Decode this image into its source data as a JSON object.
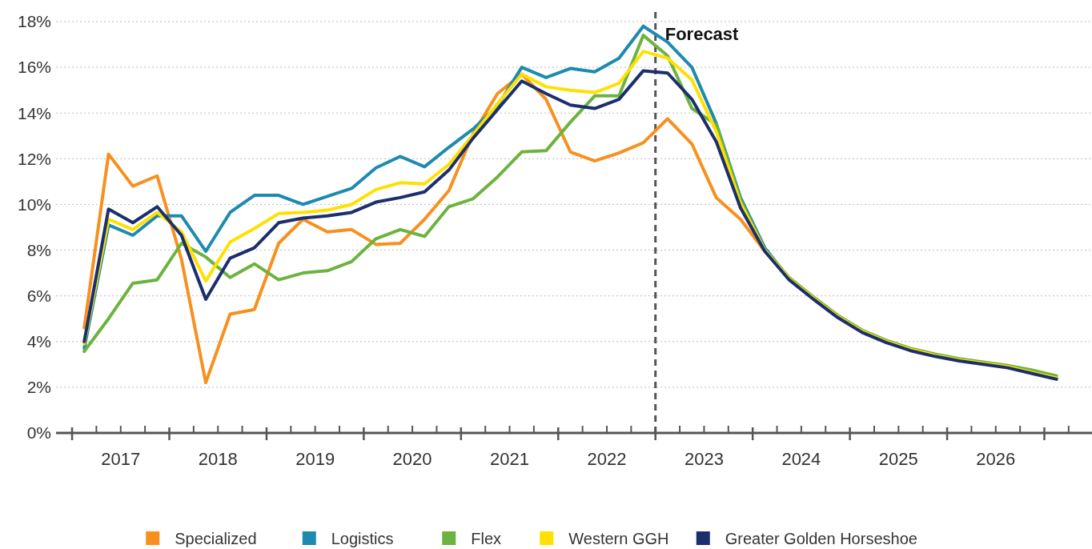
{
  "chart_data": {
    "type": "line",
    "x": [
      2017.125,
      2017.375,
      2017.625,
      2017.875,
      2018.125,
      2018.375,
      2018.625,
      2018.875,
      2019.125,
      2019.375,
      2019.625,
      2019.875,
      2020.125,
      2020.375,
      2020.625,
      2020.875,
      2021.125,
      2021.375,
      2021.625,
      2021.875,
      2022.125,
      2022.375,
      2022.625,
      2022.875,
      2023.125,
      2023.375,
      2023.625,
      2023.875,
      2024.125,
      2024.375,
      2024.625,
      2024.875,
      2025.125,
      2025.375,
      2025.625,
      2025.875,
      2026.125,
      2026.375,
      2026.625,
      2026.875,
      2027.125
    ],
    "series": [
      {
        "name": "Specialized",
        "color": "#f7901e",
        "values": [
          4.6,
          12.2,
          10.8,
          11.25,
          7.6,
          2.2,
          5.2,
          5.4,
          8.3,
          9.35,
          8.8,
          8.9,
          8.25,
          8.3,
          9.35,
          10.6,
          13.1,
          14.85,
          15.7,
          14.6,
          12.3,
          11.9,
          12.25,
          12.7,
          13.75,
          12.65,
          10.3,
          9.35,
          7.95,
          6.75,
          null,
          null,
          null,
          null,
          null,
          null,
          null,
          null,
          null,
          null,
          null
        ]
      },
      {
        "name": "Logistics",
        "color": "#1d8ab0",
        "values": [
          3.7,
          9.1,
          8.65,
          9.5,
          9.5,
          7.95,
          9.65,
          10.4,
          10.4,
          10.0,
          10.35,
          10.7,
          11.6,
          12.1,
          11.65,
          12.5,
          13.3,
          14.3,
          16.0,
          15.55,
          15.95,
          15.8,
          16.4,
          17.8,
          17.1,
          16.0,
          13.55,
          10.3,
          8.1,
          6.75,
          5.9,
          5.1,
          4.45,
          4.0,
          3.65,
          3.4,
          3.2,
          3.05,
          2.9,
          2.65,
          2.4
        ]
      },
      {
        "name": "Flex",
        "color": "#6db33f",
        "values": [
          3.57,
          5.0,
          6.55,
          6.7,
          8.3,
          7.7,
          6.8,
          7.4,
          6.7,
          7.0,
          7.1,
          7.5,
          8.5,
          8.9,
          8.6,
          9.9,
          10.25,
          11.2,
          12.3,
          12.35,
          13.6,
          14.75,
          14.75,
          17.4,
          16.5,
          14.2,
          13.5,
          10.2,
          8.0,
          6.8,
          5.95,
          5.15,
          4.5,
          4.05,
          3.7,
          3.45,
          3.25,
          3.1,
          2.95,
          2.75,
          2.5
        ]
      },
      {
        "name": "Western GGH",
        "color": "#ffe000",
        "values": [
          3.9,
          9.35,
          8.9,
          9.65,
          8.8,
          6.65,
          8.35,
          8.95,
          9.6,
          9.65,
          9.75,
          10.0,
          10.65,
          10.95,
          10.9,
          11.75,
          13.05,
          14.4,
          15.7,
          15.15,
          15.0,
          14.9,
          15.3,
          16.7,
          16.4,
          15.45,
          13.2,
          10.05,
          8.0,
          6.75,
          5.9,
          5.1,
          4.45,
          4.0,
          3.65,
          3.4,
          3.2,
          3.05,
          2.9,
          2.65,
          2.4
        ]
      },
      {
        "name": "Greater Golden Horseshoe",
        "color": "#1b2f6e",
        "values": [
          4.0,
          9.8,
          9.2,
          9.9,
          8.65,
          5.85,
          7.65,
          8.1,
          9.2,
          9.4,
          9.5,
          9.65,
          10.1,
          10.3,
          10.55,
          11.5,
          12.9,
          14.15,
          15.4,
          14.85,
          14.35,
          14.2,
          14.6,
          15.85,
          15.75,
          14.6,
          12.75,
          9.85,
          7.95,
          6.7,
          5.85,
          5.05,
          4.4,
          3.95,
          3.6,
          3.35,
          3.15,
          3.0,
          2.85,
          2.6,
          2.35
        ]
      }
    ],
    "xlim": [
      2016.835,
      2027.49
    ],
    "xticks": [
      {
        "value": 2017,
        "label": null
      },
      {
        "value": 2017.25,
        "label": null
      },
      {
        "value": 2017.5,
        "label": "2017"
      },
      {
        "value": 2017.75,
        "label": null
      },
      {
        "value": 2018,
        "label": null
      },
      {
        "value": 2018.25,
        "label": null
      },
      {
        "value": 2018.5,
        "label": "2018"
      },
      {
        "value": 2018.75,
        "label": null
      },
      {
        "value": 2019,
        "label": null
      },
      {
        "value": 2019.25,
        "label": null
      },
      {
        "value": 2019.5,
        "label": "2019"
      },
      {
        "value": 2019.75,
        "label": null
      },
      {
        "value": 2020,
        "label": null
      },
      {
        "value": 2020.25,
        "label": null
      },
      {
        "value": 2020.5,
        "label": "2020"
      },
      {
        "value": 2020.75,
        "label": null
      },
      {
        "value": 2021,
        "label": null
      },
      {
        "value": 2021.25,
        "label": null
      },
      {
        "value": 2021.5,
        "label": "2021"
      },
      {
        "value": 2021.75,
        "label": null
      },
      {
        "value": 2022,
        "label": null
      },
      {
        "value": 2022.25,
        "label": null
      },
      {
        "value": 2022.5,
        "label": "2022"
      },
      {
        "value": 2022.75,
        "label": null
      },
      {
        "value": 2023,
        "label": null
      },
      {
        "value": 2023.25,
        "label": null
      },
      {
        "value": 2023.5,
        "label": "2023"
      },
      {
        "value": 2023.75,
        "label": null
      },
      {
        "value": 2024,
        "label": null
      },
      {
        "value": 2024.25,
        "label": null
      },
      {
        "value": 2024.5,
        "label": "2024"
      },
      {
        "value": 2024.75,
        "label": null
      },
      {
        "value": 2025,
        "label": null
      },
      {
        "value": 2025.25,
        "label": null
      },
      {
        "value": 2025.5,
        "label": "2025"
      },
      {
        "value": 2025.75,
        "label": null
      },
      {
        "value": 2026,
        "label": null
      },
      {
        "value": 2026.25,
        "label": null
      },
      {
        "value": 2026.5,
        "label": "2026"
      },
      {
        "value": 2026.75,
        "label": null
      },
      {
        "value": 2027,
        "label": null
      },
      {
        "value": 2027.25,
        "label": null
      }
    ],
    "ylim": [
      0,
      18
    ],
    "yticks": [
      {
        "value": 0,
        "label": "0%"
      },
      {
        "value": 2,
        "label": "2%"
      },
      {
        "value": 4,
        "label": "4%"
      },
      {
        "value": 6,
        "label": "6%"
      },
      {
        "value": 8,
        "label": "8%"
      },
      {
        "value": 10,
        "label": "10%"
      },
      {
        "value": 12,
        "label": "12%"
      },
      {
        "value": 14,
        "label": "14%"
      },
      {
        "value": 16,
        "label": "16%"
      },
      {
        "value": 18,
        "label": "18%"
      }
    ],
    "grid": "y",
    "legend": "bottom",
    "marker": "none",
    "line_style": "solid",
    "ref_lines": [
      {
        "axis": "x",
        "value": 2023,
        "label": "Forecast",
        "color": "#555555",
        "line_style": "dashed"
      }
    ]
  }
}
